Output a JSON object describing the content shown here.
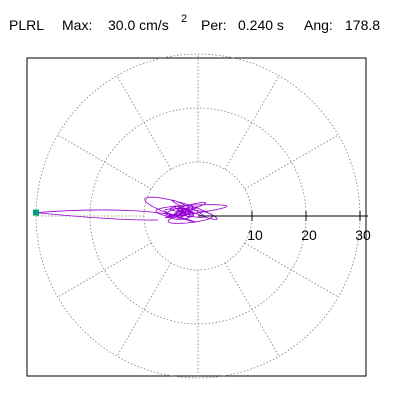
{
  "header": {
    "station": "PLRL",
    "max_label": "Max:",
    "max_value": "30.0 cm/s",
    "max_exp": "2",
    "per_label": "Per:",
    "per_value": "0.240 s",
    "ang_label": "Ang:",
    "ang_value": "178.8"
  },
  "chart_data": {
    "type": "polar-particle-motion",
    "rmax": 30,
    "ring_values": [
      10,
      20,
      30
    ],
    "tick_labels": [
      "10",
      "20",
      "30"
    ],
    "spoke_angles_deg": [
      0,
      30,
      60,
      90,
      120,
      150,
      180,
      210,
      240,
      270,
      300,
      330
    ],
    "max_amplitude": 30.0,
    "max_angle_deg": 178.8,
    "grid": true,
    "colors": {
      "trace": "#9400d3",
      "marker": "#00a07c",
      "grid": "#7f7f7f",
      "axis": "#000000"
    }
  }
}
